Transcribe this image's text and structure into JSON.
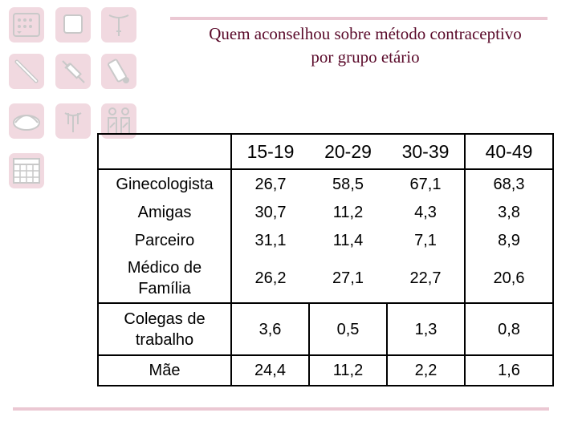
{
  "title": {
    "line1": "Quem aconselhou sobre método contraceptivo",
    "line2": "por grupo etário"
  },
  "icons": [
    "calendar-pill-icon",
    "square-icon",
    "iud-icon",
    "syringe-cream-icon",
    "injection-icon",
    "vial-icon",
    "diaphragm-icon",
    "iud-t-icon",
    "couple-icon",
    "calendar-grid-icon"
  ],
  "colors": {
    "accent": "#ebc8d3",
    "title": "#5a0a2a",
    "tile": "#f1d9e0",
    "icon_stroke": "#c9c9c9"
  },
  "table": {
    "headers": [
      "",
      "15-19",
      "20-29",
      "30-39",
      "40-49"
    ],
    "rows": [
      {
        "label": "Ginecologista",
        "values": [
          "26,7",
          "58,5",
          "67,1",
          "68,3"
        ]
      },
      {
        "label": "Amigas",
        "values": [
          "30,7",
          "11,2",
          "4,3",
          "3,8"
        ]
      },
      {
        "label": "Parceiro",
        "values": [
          "31,1",
          "11,4",
          "7,1",
          "8,9"
        ]
      },
      {
        "label_line1": "Médico de",
        "label_line2": "Família",
        "values": [
          "26,2",
          "27,1",
          "22,7",
          "20,6"
        ]
      },
      {
        "label_line1": "Colegas de",
        "label_line2": "trabalho",
        "values": [
          "3,6",
          "0,5",
          "1,3",
          "0,8"
        ]
      },
      {
        "label": "Mãe",
        "values": [
          "24,4",
          "11,2",
          "2,2",
          "1,6"
        ]
      }
    ]
  }
}
